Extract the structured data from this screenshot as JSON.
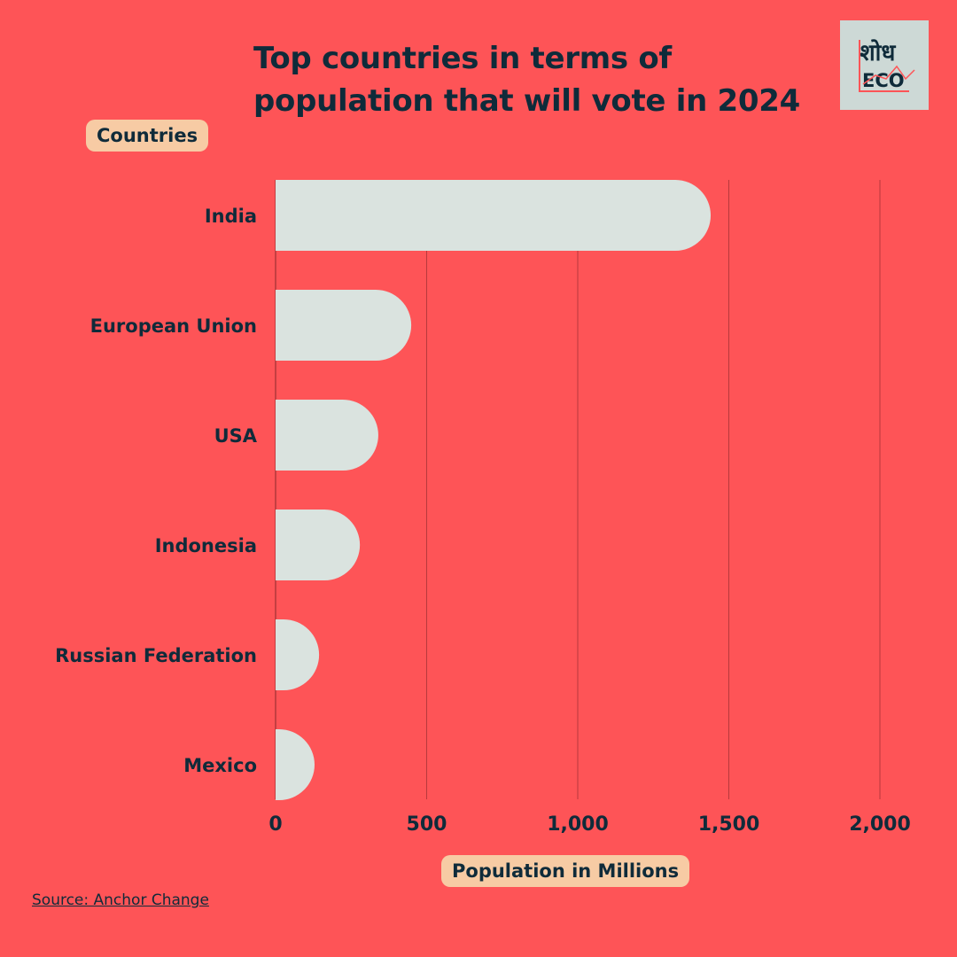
{
  "title_line1": "Top countries in terms of",
  "title_line2": "population that will vote in 2024",
  "logo_text": "शोध ECO",
  "source": "Source: Anchor Change ",
  "colors": {
    "background": "#fe5457",
    "bar": "#dae3df",
    "text": "#0f2b3a",
    "pill": "#f7cba4"
  },
  "chart_data": {
    "type": "bar",
    "orientation": "horizontal",
    "title": "Top countries in terms of population that will vote in 2024",
    "ylabel": "Countries",
    "xlabel": "Population in Millions",
    "categories": [
      "India",
      "European Union",
      "USA",
      "Indonesia",
      "Russian Federation",
      "Mexico"
    ],
    "values": [
      1440,
      449,
      340,
      279,
      144,
      129
    ],
    "xlim": [
      0,
      2000
    ],
    "ticks": [
      0,
      500,
      1000,
      1500,
      2000
    ],
    "tick_labels": [
      "0",
      "500",
      "1,000",
      "1,500",
      "2,000"
    ],
    "grid": true
  }
}
